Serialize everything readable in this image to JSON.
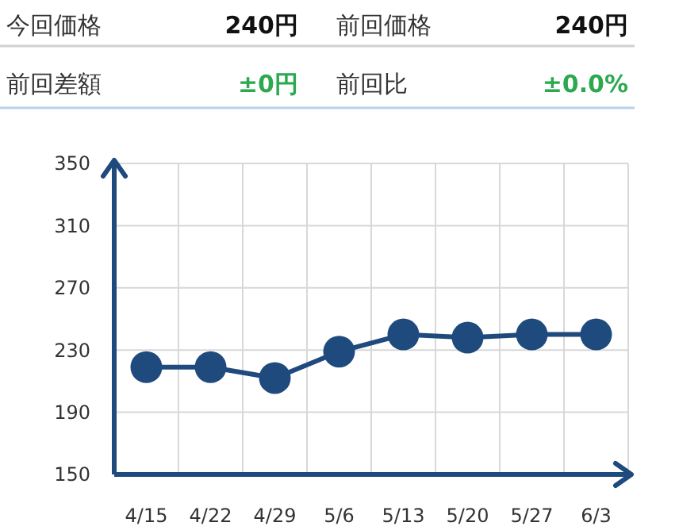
{
  "chart_data": [
    {
      "type": "other",
      "annotations": [
        "今回価格",
        "240円",
        "前回価格",
        "240円",
        "前回差額",
        "±0円",
        "前回比",
        "±0.0%"
      ],
      "colors": [
        "#333333",
        "#111111",
        "#333333",
        "#111111",
        "#333333",
        "#2ca84f",
        "#333333",
        "#2ca84f"
      ]
    },
    {
      "type": "line",
      "categories": [
        "4/15",
        "4/22",
        "4/29",
        "5/6",
        "5/13",
        "5/20",
        "5/27",
        "6/3"
      ],
      "series": [
        {
          "color": "#1f4a7d",
          "values": [
            219,
            219,
            212,
            229,
            240,
            238,
            240,
            240
          ]
        }
      ],
      "ylim": [
        150,
        350
      ],
      "yticks": [
        150,
        190,
        230,
        270,
        310,
        350
      ],
      "grid": true,
      "marker": "circle"
    }
  ]
}
